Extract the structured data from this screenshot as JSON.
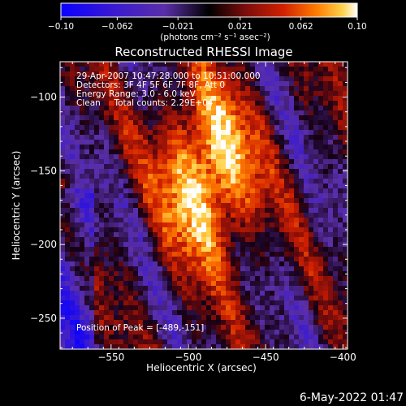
{
  "chart_data": {
    "type": "heatmap",
    "title": "Reconstructed RHESSI Image",
    "xlabel": "Heliocentric X (arcsec)",
    "ylabel": "Heliocentric Y (arcsec)",
    "xlim": [
      -583,
      -397
    ],
    "ylim": [
      -271,
      -76
    ],
    "x_ticks": [
      -550,
      -500,
      -450,
      -400
    ],
    "y_ticks": [
      -250,
      -200,
      -150,
      -100
    ],
    "x_tick_labels": [
      "−550",
      "−500",
      "−450",
      "−400"
    ],
    "y_tick_labels": [
      "−250",
      "−200",
      "−150",
      "−100"
    ],
    "annotations": [
      "29-Apr-2007 10:47:28.000 to 10:51:00.000",
      "Detectors: 3F 4F 5F 6F 7F 8F, Att 0",
      "Energy Range: 3.0 - 6.0 keV",
      "Clean     Total counts: 2.29E+04"
    ],
    "peak_label": "Position of Peak = [-489,-151]",
    "peak": [
      -489,
      -151
    ],
    "colorbar": {
      "min": -0.1,
      "max": 0.1,
      "tick_values": [
        -0.1,
        -0.062,
        -0.021,
        0.021,
        0.062,
        0.1
      ],
      "tick_labels": [
        "−0.10",
        "−0.062",
        "−0.021",
        "0.021",
        "0.062",
        "0.10"
      ],
      "unit_label": "(photons cm⁻² s⁻¹ asec⁻²)"
    },
    "colors": {
      "neg_low": "#0a00ff",
      "neg_mid": "#5a2fa8",
      "zero": "#000000",
      "pos_low": "#8a1010",
      "pos_mid": "#ff4a00",
      "pos_high": "#ffffff"
    }
  },
  "footer_date": "6-May-2022 01:47"
}
